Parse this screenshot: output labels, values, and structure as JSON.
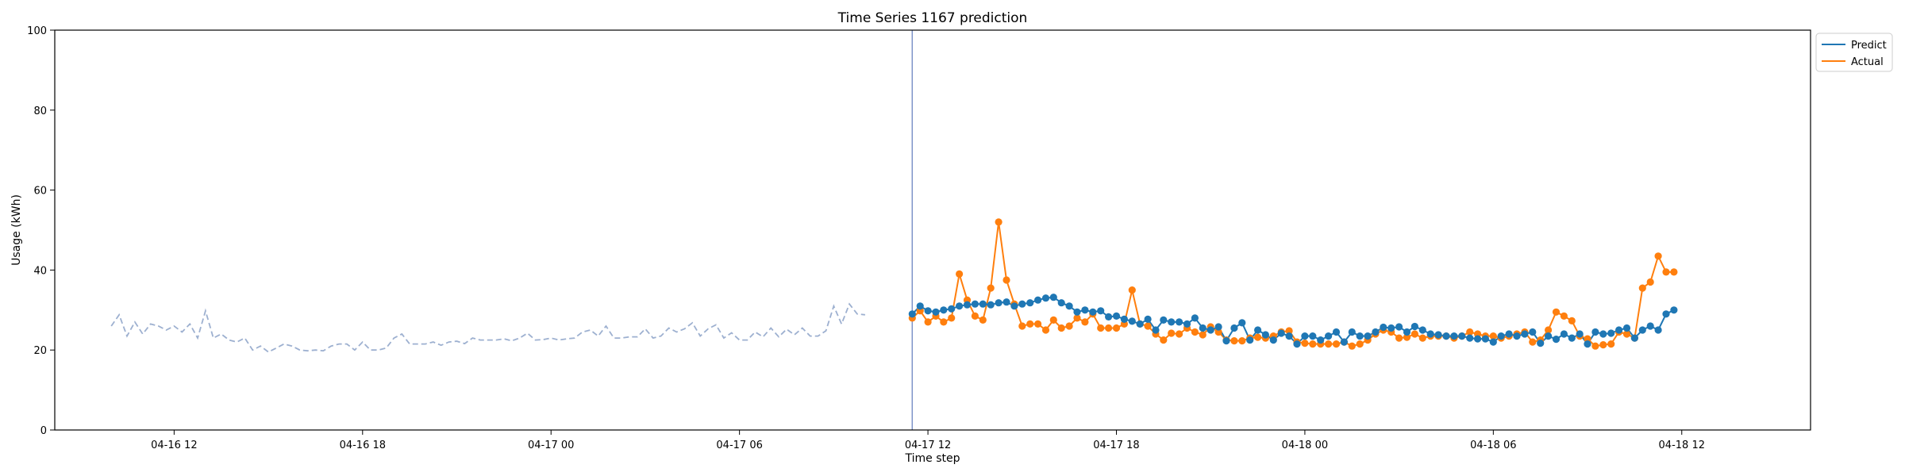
{
  "chart_data": {
    "type": "line",
    "title": "Time Series 1167 prediction",
    "xlabel": "Time step",
    "ylabel": "Usage (kWh)",
    "ylim": [
      0,
      100
    ],
    "yticks": [
      0,
      20,
      40,
      60,
      80,
      100
    ],
    "xlim_hours": [
      -3.8,
      52.1
    ],
    "xticks": [
      {
        "label": "04-16 12",
        "hour": 0
      },
      {
        "label": "04-16 18",
        "hour": 6
      },
      {
        "label": "04-17 00",
        "hour": 12
      },
      {
        "label": "04-17 06",
        "hour": 18
      },
      {
        "label": "04-17 12",
        "hour": 24
      },
      {
        "label": "04-17 18",
        "hour": 30
      },
      {
        "label": "04-18 00",
        "hour": 36
      },
      {
        "label": "04-18 06",
        "hour": 42
      },
      {
        "label": "04-18 12",
        "hour": 48
      }
    ],
    "forecast_start_hour": 23.5,
    "grid": false,
    "legend_position": "top-right (outside)",
    "history": {
      "color": "#9db0d0",
      "start_hour": -2.0,
      "step_hours": 0.25,
      "values": [
        26,
        28.8,
        23.5,
        27,
        24,
        26.5,
        26,
        25,
        26,
        24.5,
        26.5,
        23,
        29.8,
        23,
        24,
        22.5,
        22,
        23,
        20,
        21,
        19.5,
        20.5,
        21.5,
        21,
        20,
        19.8,
        20,
        19.8,
        21,
        21.5,
        21.5,
        20,
        22,
        20,
        20,
        20.5,
        23,
        24,
        21.5,
        21.5,
        21.5,
        22,
        21.2,
        22,
        22.2,
        21.6,
        23,
        22.5,
        22.5,
        22.5,
        22.8,
        22.3,
        23,
        24.2,
        22.5,
        22.6,
        23,
        22.5,
        22.8,
        23,
        24.5,
        25,
        23.5,
        26,
        23,
        23,
        23.3,
        23.3,
        25.3,
        23,
        23.5,
        25.5,
        24.5,
        25.3,
        26.8,
        23.5,
        25.3,
        26.3,
        23,
        24.3,
        22.5,
        22.5,
        24.5,
        23.3,
        25.5,
        23.3,
        25.2,
        23.8,
        25.5,
        23.5,
        23.5,
        24.8,
        31,
        26.5,
        31.5,
        29,
        28.8
      ]
    },
    "series": [
      {
        "name": "Predict",
        "color": "#1f77b4",
        "start_hour": 23.5,
        "step_hours": 0.25,
        "values": [
          29,
          31,
          29.8,
          29.5,
          30,
          30.3,
          31,
          31.3,
          31.5,
          31.5,
          31.3,
          31.8,
          32,
          31,
          31.5,
          31.8,
          32.5,
          33,
          33.2,
          31.8,
          31,
          29.5,
          30,
          29.5,
          29.8,
          28.3,
          28.5,
          27.7,
          27.2,
          26.5,
          27.7,
          25,
          27.5,
          27,
          27,
          26.5,
          28,
          25.5,
          25,
          25.8,
          22.3,
          25.5,
          26.8,
          22.5,
          25,
          23.8,
          22.5,
          24.2,
          23.5,
          21.5,
          23.5,
          23.5,
          22.5,
          23.5,
          24.5,
          22,
          24.5,
          23.5,
          23.5,
          24.5,
          25.7,
          25.5,
          25.8,
          24.5,
          25.9,
          25,
          24,
          23.8,
          23.5,
          23.5,
          23.5,
          23,
          22.8,
          22.8,
          22,
          23.5,
          24,
          23.5,
          24,
          24.5,
          21.7,
          23.5,
          22.7,
          24,
          23,
          24,
          21.5,
          24.5,
          24,
          24.2,
          25,
          25.5,
          23,
          25,
          26,
          25,
          29,
          30
        ]
      },
      {
        "name": "Actual",
        "color": "#ff7f0e",
        "start_hour": 23.5,
        "step_hours": 0.25,
        "values": [
          28,
          29.8,
          27,
          28.5,
          27,
          28,
          39,
          32.5,
          28.5,
          27.5,
          35.5,
          52,
          37.5,
          31.5,
          26,
          26.5,
          26.5,
          25,
          27.5,
          25.5,
          26,
          28,
          27,
          29,
          25.5,
          25.5,
          25.5,
          26.5,
          35,
          26.5,
          26,
          24,
          22.5,
          24.2,
          24,
          25.5,
          24.5,
          23.8,
          25.8,
          24.5,
          22.5,
          22.3,
          22.3,
          23,
          23.2,
          23,
          23.5,
          24.5,
          24.8,
          22,
          21.7,
          21.5,
          21.5,
          21.5,
          21.5,
          22,
          21,
          21.5,
          22.5,
          24,
          25,
          24.5,
          23,
          23.2,
          24,
          23,
          23.5,
          23.5,
          23.5,
          23,
          23.5,
          24.5,
          24,
          23.5,
          23.5,
          23,
          23.5,
          24,
          24.5,
          22,
          22.5,
          25,
          29.5,
          28.5,
          27.3,
          23.5,
          22.8,
          21,
          21.3,
          21.5,
          24.5,
          24,
          23,
          35.5,
          37,
          43.5,
          39.5,
          39.5
        ]
      }
    ]
  }
}
